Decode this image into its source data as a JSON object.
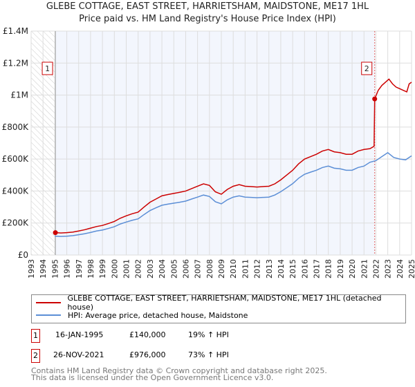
{
  "chart_data": {
    "type": "line",
    "title": "GLEBE COTTAGE, EAST STREET, HARRIETSHAM, MAIDSTONE, ME17 1HL",
    "subtitle": "Price paid vs. HM Land Registry's House Price Index (HPI)",
    "xlim": [
      1993,
      2025
    ],
    "ylim": [
      0,
      1400000
    ],
    "x_ticks": [
      "1993",
      "1994",
      "1995",
      "1996",
      "1997",
      "1998",
      "1999",
      "2000",
      "2001",
      "2002",
      "2003",
      "2004",
      "2005",
      "2006",
      "2007",
      "2008",
      "2009",
      "2010",
      "2011",
      "2012",
      "2013",
      "2014",
      "2015",
      "2016",
      "2017",
      "2018",
      "2019",
      "2020",
      "2021",
      "2022",
      "2023",
      "2024",
      "2025"
    ],
    "y_ticks": [
      {
        "v": 0,
        "l": "£0"
      },
      {
        "v": 200000,
        "l": "£200K"
      },
      {
        "v": 400000,
        "l": "£400K"
      },
      {
        "v": 600000,
        "l": "£600K"
      },
      {
        "v": 800000,
        "l": "£800K"
      },
      {
        "v": 1000000,
        "l": "£1M"
      },
      {
        "v": 1200000,
        "l": "£1.2M"
      },
      {
        "v": 1400000,
        "l": "£1.4M"
      }
    ],
    "grid": true,
    "series": [
      {
        "name": "GLEBE COTTAGE, EAST STREET, HARRIETSHAM, MAIDSTONE, ME17 1HL (detached house)",
        "color": "#cc0000",
        "x": [
          1995.04,
          1995.5,
          1996,
          1996.5,
          1997,
          1997.5,
          1998,
          1998.5,
          1999,
          1999.5,
          2000,
          2000.5,
          2001,
          2001.5,
          2002,
          2002.5,
          2003,
          2003.5,
          2004,
          2004.5,
          2005,
          2005.5,
          2006,
          2006.5,
          2007,
          2007.5,
          2008,
          2008.5,
          2009,
          2009.5,
          2010,
          2010.5,
          2011,
          2011.5,
          2012,
          2012.5,
          2013,
          2013.5,
          2014,
          2014.5,
          2015,
          2015.5,
          2016,
          2016.5,
          2017,
          2017.5,
          2018,
          2018.5,
          2019,
          2019.5,
          2020,
          2020.5,
          2021,
          2021.5,
          2021.85,
          2021.9,
          2022.2,
          2022.5,
          2022.8,
          2023.1,
          2023.4,
          2023.7,
          2024,
          2024.3,
          2024.6,
          2024.8,
          2025
        ],
        "y": [
          140000,
          138000,
          140000,
          143000,
          150000,
          158000,
          168000,
          178000,
          185000,
          197000,
          210000,
          230000,
          245000,
          258000,
          268000,
          300000,
          330000,
          350000,
          370000,
          378000,
          385000,
          392000,
          400000,
          415000,
          430000,
          445000,
          435000,
          395000,
          380000,
          410000,
          430000,
          440000,
          430000,
          428000,
          425000,
          428000,
          430000,
          445000,
          470000,
          500000,
          530000,
          570000,
          600000,
          615000,
          630000,
          650000,
          660000,
          645000,
          640000,
          630000,
          630000,
          650000,
          660000,
          665000,
          680000,
          976000,
          1030000,
          1060000,
          1080000,
          1100000,
          1070000,
          1050000,
          1040000,
          1030000,
          1020000,
          1070000,
          1080000
        ]
      },
      {
        "name": "HPI: Average price, detached house, Maidstone",
        "color": "#5b8ed6",
        "x": [
          1995,
          1995.5,
          1996,
          1996.5,
          1997,
          1997.5,
          1998,
          1998.5,
          1999,
          1999.5,
          2000,
          2000.5,
          2001,
          2001.5,
          2002,
          2002.5,
          2003,
          2003.5,
          2004,
          2004.5,
          2005,
          2005.5,
          2006,
          2006.5,
          2007,
          2007.5,
          2008,
          2008.5,
          2009,
          2009.5,
          2010,
          2010.5,
          2011,
          2011.5,
          2012,
          2012.5,
          2013,
          2013.5,
          2014,
          2014.5,
          2015,
          2015.5,
          2016,
          2016.5,
          2017,
          2017.5,
          2018,
          2018.5,
          2019,
          2019.5,
          2020,
          2020.5,
          2021,
          2021.5,
          2022,
          2022.5,
          2023,
          2023.5,
          2024,
          2024.5,
          2025
        ],
        "y": [
          118000,
          116000,
          118000,
          121000,
          127000,
          133000,
          141000,
          150000,
          156000,
          166000,
          177000,
          194000,
          206000,
          217000,
          226000,
          253000,
          278000,
          295000,
          311000,
          318000,
          324000,
          330000,
          337000,
          350000,
          362000,
          375000,
          366000,
          333000,
          320000,
          345000,
          362000,
          370000,
          362000,
          360000,
          358000,
          360000,
          362000,
          375000,
          396000,
          421000,
          446000,
          480000,
          505000,
          518000,
          530000,
          547000,
          556000,
          543000,
          539000,
          530000,
          530000,
          547000,
          556000,
          580000,
          590000,
          615000,
          640000,
          610000,
          600000,
          595000,
          620000
        ]
      }
    ],
    "sales": [
      {
        "id": "1",
        "date": "16-JAN-1995",
        "price": "£140,000",
        "hpi": "19% ↑ HPI",
        "x": 1995.04,
        "y": 140000
      },
      {
        "id": "2",
        "date": "26-NOV-2021",
        "price": "£976,000",
        "hpi": "73% ↑ HPI",
        "x": 2021.9,
        "y": 976000
      }
    ]
  },
  "footer": {
    "line1": "Contains HM Land Registry data © Crown copyright and database right 2025.",
    "line2": "This data is licensed under the Open Government Licence v3.0."
  }
}
